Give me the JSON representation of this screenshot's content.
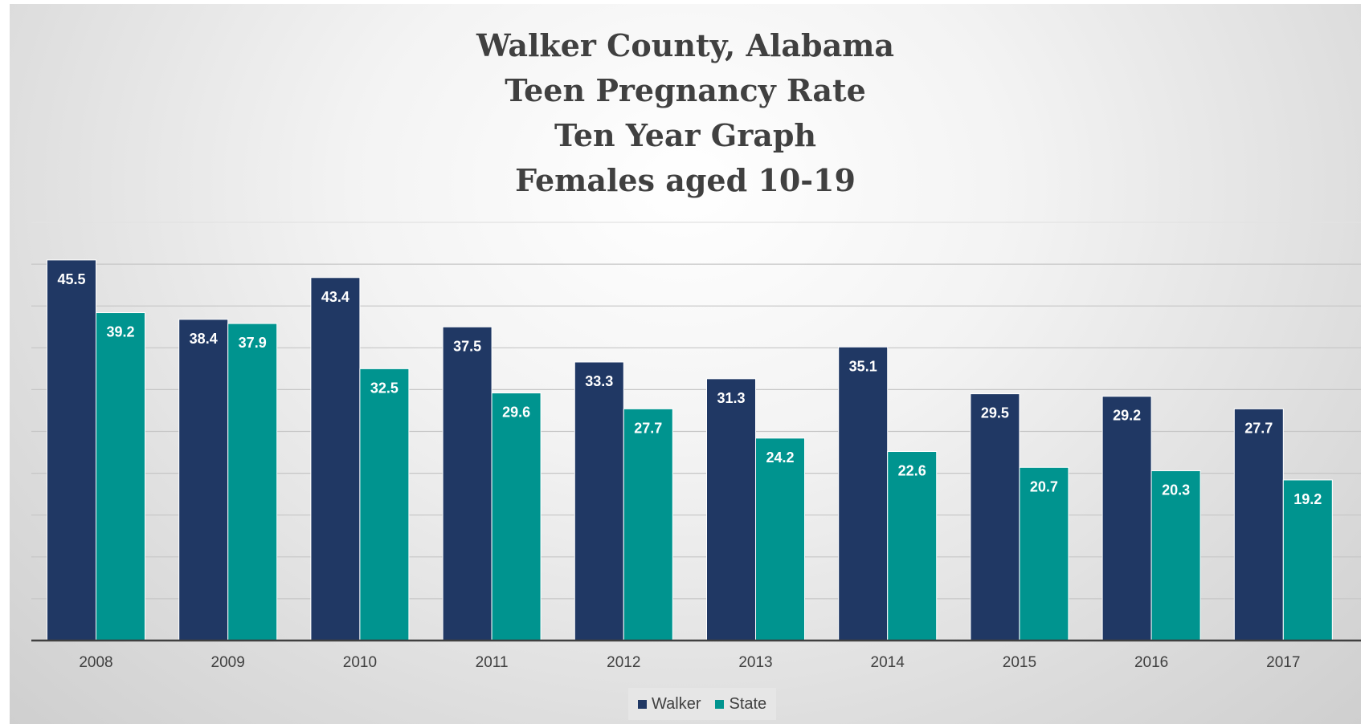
{
  "chart_data": {
    "type": "bar",
    "title": [
      "Walker County, Alabama",
      "Teen Pregnancy Rate",
      "Ten Year Graph",
      "Females aged 10-19"
    ],
    "categories": [
      "2008",
      "2009",
      "2010",
      "2011",
      "2012",
      "2013",
      "2014",
      "2015",
      "2016",
      "2017"
    ],
    "series": [
      {
        "name": "Walker",
        "color": "#203864",
        "values": [
          45.5,
          38.4,
          43.4,
          37.5,
          33.3,
          31.3,
          35.1,
          29.5,
          29.2,
          27.7
        ]
      },
      {
        "name": "State",
        "color": "#00948f",
        "values": [
          39.2,
          37.9,
          32.5,
          29.6,
          27.7,
          24.2,
          22.6,
          20.7,
          20.3,
          19.2
        ]
      }
    ],
    "ylim": [
      0,
      50
    ],
    "gridlines": true,
    "data_labels": true,
    "legend_position": "bottom",
    "xlabel": "",
    "ylabel": ""
  }
}
